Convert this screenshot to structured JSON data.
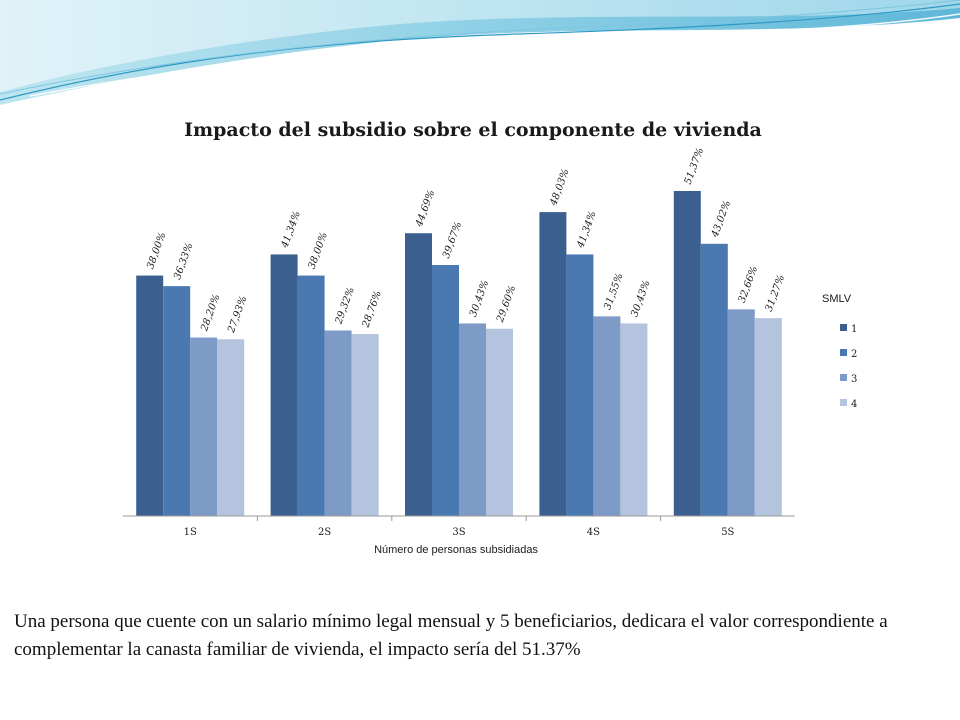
{
  "caption": "Una persona  que cuente con  un salario mínimo legal mensual y  5 beneficiarios, dedicara el valor correspondiente a complementar la canasta familiar de vivienda, el impacto sería del 51.37%",
  "chart_data": {
    "type": "bar",
    "title": "Impacto del subsidio sobre el componente de vivienda",
    "xlabel": "Número de personas subsidiadas",
    "ylabel": "",
    "ylim": [
      0,
      55
    ],
    "grid": false,
    "legend_title": "SMLV",
    "legend_position": "right",
    "categories": [
      "1S",
      "2S",
      "3S",
      "4S",
      "5S"
    ],
    "series": [
      {
        "name": "1",
        "color": "#3B6090",
        "values": [
          38.0,
          41.34,
          44.69,
          48.03,
          51.37
        ],
        "labels": [
          "38,00%",
          "41,34%",
          "44,69%",
          "48,03%",
          "51,37%"
        ]
      },
      {
        "name": "2",
        "color": "#4A78B0",
        "values": [
          36.33,
          38.0,
          39.67,
          41.34,
          43.02
        ],
        "labels": [
          "36,33%",
          "38,00%",
          "39,67%",
          "41,34%",
          "43,02%"
        ]
      },
      {
        "name": "3",
        "color": "#7E9BC8",
        "values": [
          28.2,
          29.32,
          30.43,
          31.55,
          32.66
        ],
        "labels": [
          "28,20%",
          "29,32%",
          "30,43%",
          "31,55%",
          "32,66%"
        ]
      },
      {
        "name": "4",
        "color": "#B4C3DE",
        "values": [
          27.93,
          28.76,
          29.6,
          30.43,
          31.27
        ],
        "labels": [
          "27,93%",
          "28,76%",
          "29,60%",
          "30,43%",
          "31,27%"
        ]
      }
    ]
  }
}
